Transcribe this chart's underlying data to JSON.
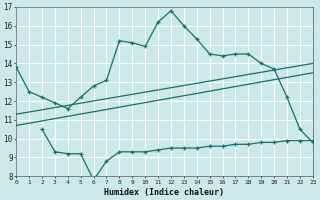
{
  "xlabel": "Humidex (Indice chaleur)",
  "bg_color": "#cce8e8",
  "grid_color": "#b8d8d8",
  "line_color": "#1a6e6e",
  "x_min": 0,
  "x_max": 23,
  "y_min": 8,
  "y_max": 17,
  "series1_x": [
    0,
    1,
    2,
    3,
    4,
    5,
    6,
    7,
    8,
    9,
    10,
    11,
    12,
    13,
    14,
    15,
    16,
    17,
    18,
    19,
    20,
    21,
    22,
    23
  ],
  "series1_y": [
    13.8,
    12.5,
    12.2,
    11.9,
    11.6,
    12.2,
    12.8,
    13.1,
    15.2,
    15.1,
    14.9,
    16.2,
    16.8,
    16.0,
    15.3,
    14.5,
    14.4,
    14.5,
    14.5,
    14.0,
    13.7,
    12.2,
    10.5,
    9.8
  ],
  "series2_x": [
    2,
    3,
    4,
    5,
    6,
    7,
    8,
    9,
    10,
    11,
    12,
    13,
    14,
    15,
    16,
    17,
    18,
    19,
    20,
    21,
    22,
    23
  ],
  "series2_y": [
    10.5,
    9.3,
    9.2,
    9.2,
    7.8,
    8.8,
    9.3,
    9.3,
    9.3,
    9.4,
    9.5,
    9.5,
    9.5,
    9.6,
    9.6,
    9.7,
    9.7,
    9.8,
    9.8,
    9.9,
    9.9,
    9.9
  ],
  "trend1_x": [
    0,
    23
  ],
  "trend1_y": [
    10.7,
    13.5
  ],
  "trend2_x": [
    0,
    23
  ],
  "trend2_y": [
    11.3,
    14.0
  ]
}
